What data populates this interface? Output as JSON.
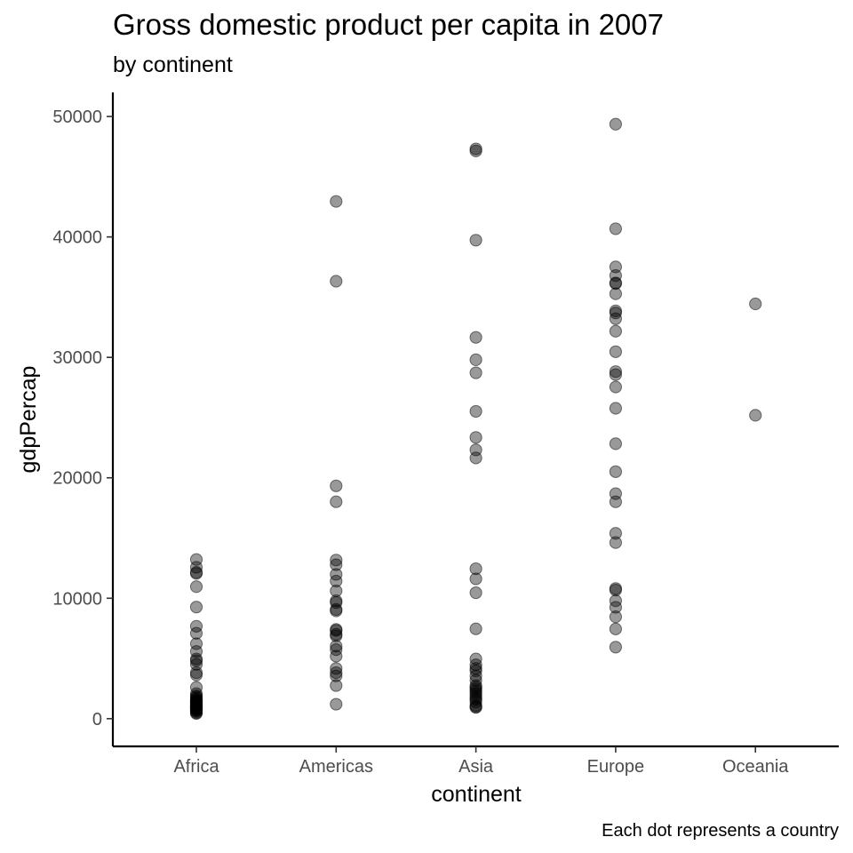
{
  "chart_data": {
    "type": "scatter",
    "title": "Gross domestic product per capita in 2007",
    "subtitle": "by continent",
    "caption": "Each dot represents a country",
    "xlabel": "continent",
    "ylabel": "gdpPercap",
    "categories": [
      "Africa",
      "Americas",
      "Asia",
      "Europe",
      "Oceania"
    ],
    "ylim": [
      -2300,
      52000
    ],
    "y_ticks": [
      0,
      10000,
      20000,
      30000,
      40000,
      50000
    ],
    "y_tick_labels": [
      "0",
      "10000",
      "20000",
      "30000",
      "40000",
      "50000"
    ],
    "grid": false,
    "legend": "none",
    "point_color": "#000000",
    "point_alpha": 0.4,
    "points": [
      {
        "category": "Africa",
        "values": [
          13210,
          12570,
          12150,
          12060,
          10960,
          9270,
          7670,
          7090,
          6220,
          5580,
          4960,
          4810,
          4510,
          3820,
          3630,
          2600,
          2080,
          1800,
          1710,
          1600,
          1550,
          1470,
          1440,
          1330,
          1270,
          1210,
          1110,
          1060,
          1040,
          980,
          930,
          880,
          860,
          830,
          750,
          710,
          650,
          580,
          490,
          430,
          1900,
          1370,
          1180,
          1010,
          900
        ]
      },
      {
        "category": "Americas",
        "values": [
          42950,
          36320,
          19330,
          18010,
          13170,
          12780,
          11980,
          11420,
          10610,
          9790,
          9640,
          9070,
          8950,
          7410,
          7320,
          7010,
          6870,
          6030,
          5730,
          5190,
          4170,
          3820,
          3550,
          2750,
          1200
        ]
      },
      {
        "category": "Asia",
        "values": [
          47310,
          47140,
          39730,
          31660,
          29800,
          28720,
          25520,
          23350,
          22320,
          21650,
          12450,
          11610,
          10460,
          7460,
          4960,
          4470,
          4180,
          3970,
          3550,
          3190,
          2750,
          2600,
          2450,
          2280,
          1710,
          1590,
          1390,
          1090,
          970,
          940,
          2100,
          1910
        ]
      },
      {
        "category": "Europe",
        "values": [
          49360,
          40680,
          37510,
          36790,
          36180,
          36130,
          35280,
          33860,
          33690,
          33210,
          32170,
          30470,
          28820,
          28570,
          27540,
          25770,
          22830,
          20510,
          18680,
          18010,
          15390,
          14620,
          10810,
          10680,
          9790,
          9250,
          8460,
          7450,
          5940
        ]
      },
      {
        "category": "Oceania",
        "values": [
          34440,
          25190
        ]
      }
    ]
  }
}
